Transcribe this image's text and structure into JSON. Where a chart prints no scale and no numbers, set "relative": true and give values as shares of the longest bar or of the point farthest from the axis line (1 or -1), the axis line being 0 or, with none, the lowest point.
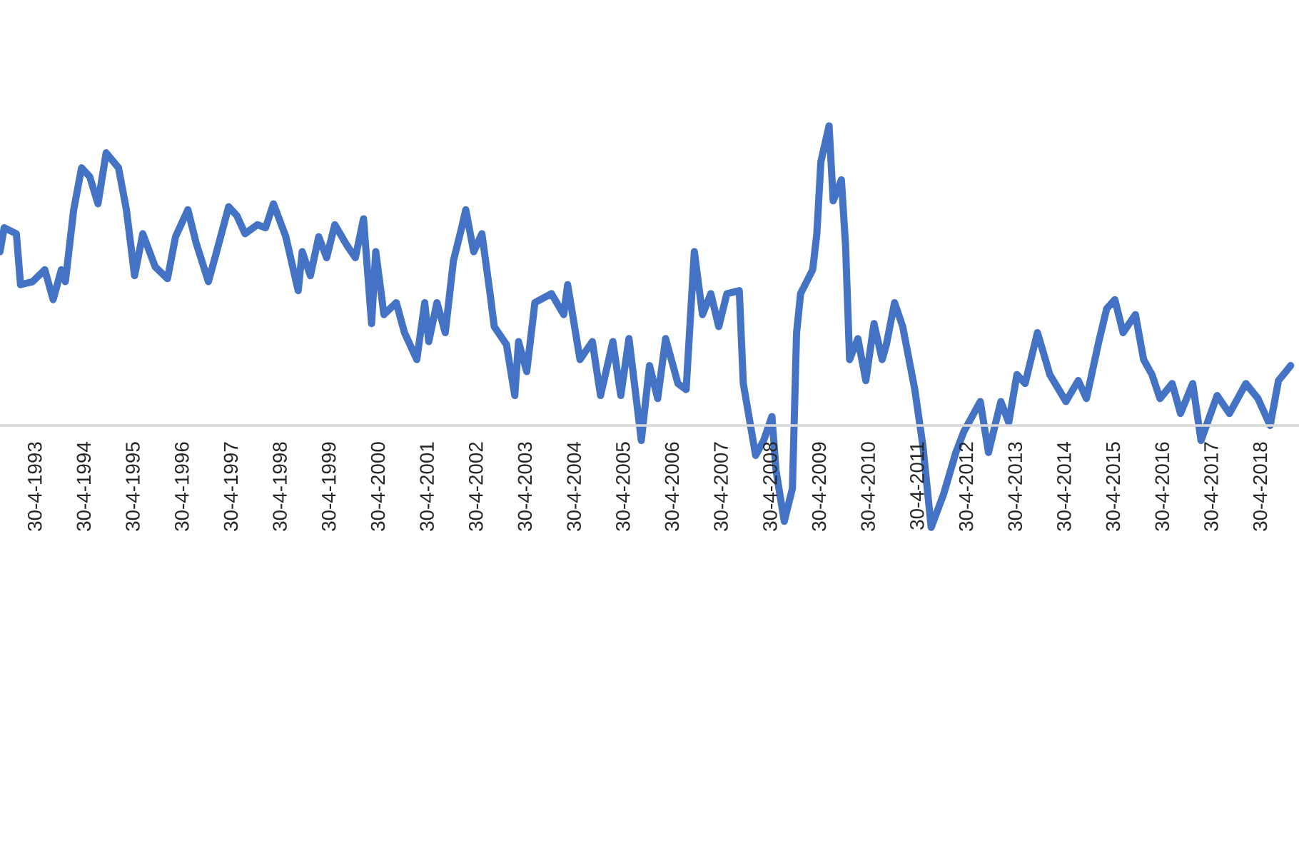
{
  "chart_data": {
    "type": "line",
    "relative": true,
    "xlim": [
      "1992-08",
      "2019-02"
    ],
    "xticks": [
      {
        "value": "1993-04-30",
        "label": "30-4-1993"
      },
      {
        "value": "1994-04-30",
        "label": "30-4-1994"
      },
      {
        "value": "1995-04-30",
        "label": "30-4-1995"
      },
      {
        "value": "1996-04-30",
        "label": "30-4-1996"
      },
      {
        "value": "1997-04-30",
        "label": "30-4-1997"
      },
      {
        "value": "1998-04-30",
        "label": "30-4-1998"
      },
      {
        "value": "1999-04-30",
        "label": "30-4-1999"
      },
      {
        "value": "2000-04-30",
        "label": "30-4-2000"
      },
      {
        "value": "2001-04-30",
        "label": "30-4-2001"
      },
      {
        "value": "2002-04-30",
        "label": "30-4-2002"
      },
      {
        "value": "2003-04-30",
        "label": "30-4-2003"
      },
      {
        "value": "2004-04-30",
        "label": "30-4-2004"
      },
      {
        "value": "2005-04-30",
        "label": "30-4-2005"
      },
      {
        "value": "2006-04-30",
        "label": "30-4-2006"
      },
      {
        "value": "2007-04-30",
        "label": "30-4-2007"
      },
      {
        "value": "2008-04-30",
        "label": "30-4-2008"
      },
      {
        "value": "2009-04-30",
        "label": "30-4-2009"
      },
      {
        "value": "2010-04-30",
        "label": "30-4-2010"
      },
      {
        "value": "2011-04-30",
        "label": "30-4-2011"
      },
      {
        "value": "2012-04-30",
        "label": "30-4-2012"
      },
      {
        "value": "2013-04-30",
        "label": "30-4-2013"
      },
      {
        "value": "2014-04-30",
        "label": "30-4-2014"
      },
      {
        "value": "2015-04-30",
        "label": "30-4-2015"
      },
      {
        "value": "2016-04-30",
        "label": "30-4-2016"
      },
      {
        "value": "2017-04-30",
        "label": "30-4-2017"
      },
      {
        "value": "2018-04-30",
        "label": "30-4-2018"
      }
    ],
    "line_style": "solid",
    "marker": "none",
    "legend": false,
    "grid": false,
    "series": [
      {
        "color": "#4472c4",
        "x": [
          "1992-08",
          "1992-09",
          "1992-12",
          "1993-01",
          "1993-04",
          "1993-07",
          "1993-09",
          "1993-11",
          "1993-12",
          "1994-02",
          "1994-04",
          "1994-06",
          "1994-08",
          "1994-10",
          "1995-01",
          "1995-03",
          "1995-05",
          "1995-07",
          "1995-10",
          "1996-01",
          "1996-03",
          "1996-06",
          "1996-08",
          "1996-11",
          "1997-01",
          "1997-04",
          "1997-06",
          "1997-08",
          "1997-11",
          "1998-01",
          "1998-03",
          "1998-06",
          "1998-09",
          "1998-10",
          "1998-12",
          "1999-02",
          "1999-04",
          "1999-06",
          "1999-09",
          "1999-11",
          "2000-01",
          "2000-03",
          "2000-04",
          "2000-06",
          "2000-09",
          "2000-11",
          "2001-02",
          "2001-04",
          "2001-05",
          "2001-07",
          "2001-09",
          "2001-11",
          "2002-01",
          "2002-02",
          "2002-04",
          "2002-06",
          "2002-08",
          "2002-09",
          "2002-12",
          "2003-02",
          "2003-03",
          "2003-05",
          "2003-07",
          "2003-11",
          "2004-02",
          "2004-03",
          "2004-06",
          "2004-09",
          "2004-11",
          "2005-02",
          "2005-04",
          "2005-06",
          "2005-09",
          "2005-11",
          "2006-01",
          "2006-03",
          "2006-06",
          "2006-08",
          "2006-10",
          "2006-12",
          "2007-02",
          "2007-04",
          "2007-06",
          "2007-09",
          "2007-10",
          "2008-01",
          "2008-03",
          "2008-05",
          "2008-06",
          "2008-08",
          "2008-10",
          "2008-11",
          "2008-12",
          "2009-03",
          "2009-04",
          "2009-05",
          "2009-07",
          "2009-08",
          "2009-10",
          "2009-11",
          "2009-12",
          "2010-02",
          "2010-04",
          "2010-06",
          "2010-08",
          "2010-09",
          "2010-11",
          "2011-01",
          "2011-04",
          "2011-06",
          "2011-08",
          "2011-11",
          "2012-02",
          "2012-04",
          "2012-08",
          "2012-10",
          "2013-01",
          "2013-03",
          "2013-05",
          "2013-07",
          "2013-10",
          "2014-01",
          "2014-05",
          "2014-08",
          "2014-10",
          "2015-01",
          "2015-03",
          "2015-05",
          "2015-07",
          "2015-10",
          "2015-12",
          "2016-02",
          "2016-04",
          "2016-07",
          "2016-09",
          "2016-12",
          "2017-02",
          "2017-06",
          "2017-09",
          "2018-01",
          "2018-04",
          "2018-07",
          "2018-09",
          "2018-12"
        ],
        "values": [
          0.58,
          0.66,
          0.64,
          0.47,
          0.48,
          0.52,
          0.42,
          0.52,
          0.48,
          0.72,
          0.86,
          0.83,
          0.74,
          0.91,
          0.86,
          0.72,
          0.5,
          0.64,
          0.53,
          0.49,
          0.63,
          0.72,
          0.61,
          0.48,
          0.58,
          0.73,
          0.7,
          0.64,
          0.67,
          0.66,
          0.74,
          0.63,
          0.45,
          0.58,
          0.5,
          0.63,
          0.56,
          0.67,
          0.6,
          0.56,
          0.69,
          0.34,
          0.58,
          0.37,
          0.41,
          0.31,
          0.22,
          0.41,
          0.28,
          0.41,
          0.31,
          0.55,
          0.66,
          0.72,
          0.58,
          0.64,
          0.44,
          0.33,
          0.27,
          0.1,
          0.28,
          0.18,
          0.41,
          0.44,
          0.37,
          0.47,
          0.22,
          0.28,
          0.1,
          0.28,
          0.1,
          0.29,
          -0.05,
          0.2,
          0.09,
          0.29,
          0.14,
          0.12,
          0.58,
          0.37,
          0.44,
          0.33,
          0.44,
          0.45,
          0.14,
          -0.1,
          -0.05,
          0.03,
          -0.15,
          -0.32,
          -0.21,
          0.31,
          0.44,
          0.52,
          0.64,
          0.88,
          1.0,
          0.75,
          0.82,
          0.6,
          0.22,
          0.29,
          0.15,
          0.34,
          0.22,
          0.27,
          0.41,
          0.33,
          0.12,
          -0.07,
          -0.34,
          -0.23,
          -0.09,
          -0.02,
          0.08,
          -0.09,
          0.08,
          0.01,
          0.17,
          0.14,
          0.31,
          0.17,
          0.08,
          0.15,
          0.09,
          0.28,
          0.39,
          0.42,
          0.31,
          0.37,
          0.22,
          0.17,
          0.09,
          0.14,
          0.04,
          0.14,
          -0.05,
          0.1,
          0.04,
          0.14,
          0.09,
          0.0,
          0.15,
          0.2
        ]
      }
    ]
  }
}
